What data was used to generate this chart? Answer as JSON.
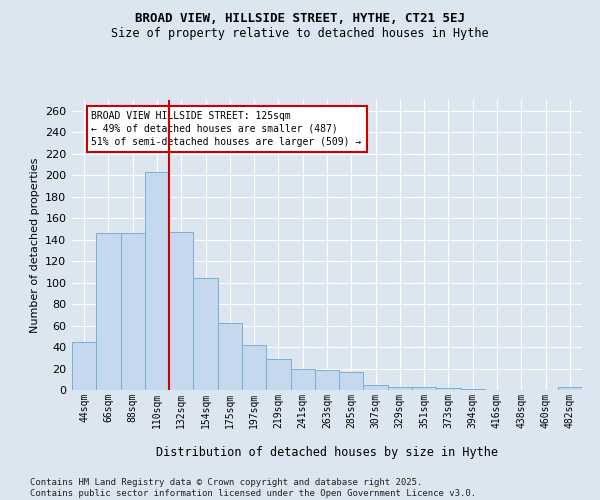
{
  "title1": "BROAD VIEW, HILLSIDE STREET, HYTHE, CT21 5EJ",
  "title2": "Size of property relative to detached houses in Hythe",
  "xlabel": "Distribution of detached houses by size in Hythe",
  "ylabel": "Number of detached properties",
  "categories": [
    "44sqm",
    "66sqm",
    "88sqm",
    "110sqm",
    "132sqm",
    "154sqm",
    "175sqm",
    "197sqm",
    "219sqm",
    "241sqm",
    "263sqm",
    "285sqm",
    "307sqm",
    "329sqm",
    "351sqm",
    "373sqm",
    "394sqm",
    "416sqm",
    "438sqm",
    "460sqm",
    "482sqm"
  ],
  "values": [
    45,
    146,
    146,
    203,
    147,
    104,
    62,
    42,
    29,
    20,
    19,
    17,
    5,
    3,
    3,
    2,
    1,
    0,
    0,
    0,
    3
  ],
  "bar_color": "#c5d8ed",
  "bar_edge_color": "#7bafd4",
  "vline_x": 3.5,
  "vline_color": "#cc0000",
  "annotation_line1": "BROAD VIEW HILLSIDE STREET: 125sqm",
  "annotation_line2": "← 49% of detached houses are smaller (487)",
  "annotation_line3": "51% of semi-detached houses are larger (509) →",
  "ylim": [
    0,
    270
  ],
  "yticks": [
    0,
    20,
    40,
    60,
    80,
    100,
    120,
    140,
    160,
    180,
    200,
    220,
    240,
    260
  ],
  "background_color": "#dce6f0",
  "grid_color": "#ffffff",
  "footer": "Contains HM Land Registry data © Crown copyright and database right 2025.\nContains public sector information licensed under the Open Government Licence v3.0."
}
